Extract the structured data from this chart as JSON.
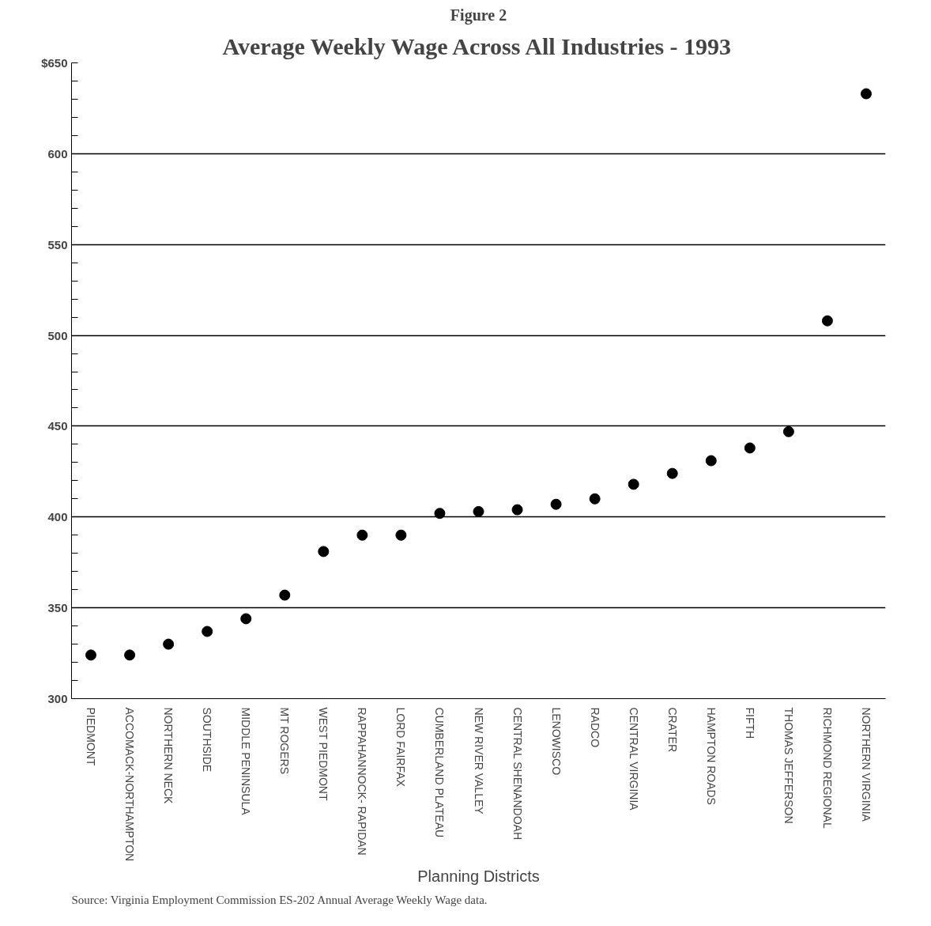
{
  "chart_data": {
    "type": "scatter",
    "subtitle": "Figure 2",
    "title": "Average Weekly Wage Across All Industries - 1993",
    "xlabel": "Planning Districts",
    "categories": [
      "PIEDMONT",
      "ACCOMACK-NORTHAMPTON",
      "NORTHERN NECK",
      "SOUTHSIDE",
      "MIDDLE PENINSULA",
      "MT ROGERS",
      "WEST PIEDMONT",
      "RAPPAHANNOCK- RAPIDAN",
      "LORD FAIRFAX",
      "CUMBERLAND PLATEAU",
      "NEW RIVER VALLEY",
      "CENTRAL SHENANDOAH",
      "LENOWISCO",
      "RADCO",
      "CENTRAL VIRGINIA",
      "CRATER",
      "HAMPTON ROADS",
      "FIFTH",
      "THOMAS JEFFERSON",
      "RICHMOND REGIONAL",
      "NORTHERN VIRGINIA"
    ],
    "values": [
      324,
      324,
      330,
      337,
      344,
      357,
      381,
      390,
      390,
      402,
      403,
      404,
      407,
      410,
      418,
      424,
      431,
      438,
      447,
      508,
      633
    ],
    "color": "#000000",
    "marker": "circle",
    "ylim": [
      300,
      650
    ],
    "yticks": [
      300,
      350,
      400,
      450,
      500,
      550,
      600,
      {
        "value": 650,
        "label": "$650"
      }
    ],
    "grid": "y",
    "annotations": [
      "Source:  Virginia Employment Commission ES-202 Annual Average Weekly Wage data."
    ]
  }
}
